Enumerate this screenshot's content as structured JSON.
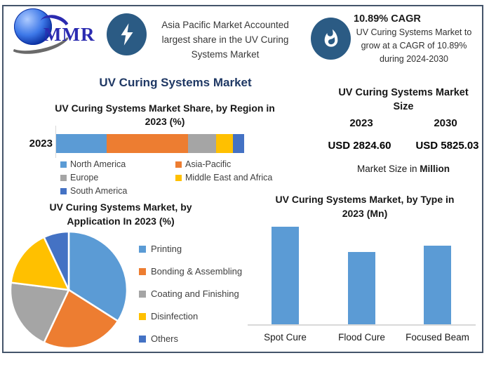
{
  "page": {
    "border_color": "#44546A",
    "background": "#ffffff",
    "accent_navy": "#1f3864",
    "icon_circle_color": "#2b5b84",
    "value_blue": "#1e87c8"
  },
  "header": {
    "logo_text": "MMR",
    "highlight_text": "Asia Pacific Market Accounted largest share in the UV Curing Systems Market",
    "cagr_title": "10.89% CAGR",
    "cagr_line1": "UV Curing Systems Market to",
    "cagr_line2": "grow at a CAGR of 10.89%",
    "cagr_line3": "during 2024-2030"
  },
  "main_title": "UV Curing Systems Market",
  "market_size": {
    "title_line1": "UV Curing Systems Market",
    "title_line2": "Size",
    "columns": [
      {
        "year": "2023",
        "value": "USD 2824.60"
      },
      {
        "year": "2030",
        "value": "USD 5825.03"
      }
    ],
    "note_prefix": "Market Size in ",
    "note_bold": "Million",
    "value_color": "#1e87c8"
  },
  "chart_data": [
    {
      "id": "region_share",
      "type": "bar",
      "orientation": "horizontal-stacked",
      "title": "UV Curing Systems Market Share, by Region in 2023 (%)",
      "title_line1": "UV Curing Systems Market Share, by Region in",
      "title_line2": "2023 (%)",
      "categories": [
        "2023"
      ],
      "series": [
        {
          "name": "North America",
          "color": "#5B9BD5",
          "values": [
            27
          ]
        },
        {
          "name": "Asia-Pacific",
          "color": "#ED7D31",
          "values": [
            43
          ]
        },
        {
          "name": "Europe",
          "color": "#A5A5A5",
          "values": [
            15
          ]
        },
        {
          "name": "Middle East and Africa",
          "color": "#FFC000",
          "values": [
            9
          ]
        },
        {
          "name": "South America",
          "color": "#4472C4",
          "values": [
            6
          ]
        }
      ],
      "unit": "%",
      "xlim": [
        0,
        100
      ],
      "grid": false,
      "legend_position": "bottom"
    },
    {
      "id": "application_share",
      "type": "pie",
      "title": "UV Curing Systems Market, by Application In 2023 (%)",
      "title_line1": "UV Curing Systems Market, by",
      "title_line2": "Application In 2023 (%)",
      "labels": [
        "Printing",
        "Bonding & Assembling",
        "Coating and Finishing",
        "Disinfection",
        "Others"
      ],
      "values": [
        34,
        23,
        20,
        16,
        7
      ],
      "colors": [
        "#5B9BD5",
        "#ED7D31",
        "#A5A5A5",
        "#FFC000",
        "#4472C4"
      ],
      "unit": "%",
      "start_angle_deg": 0,
      "direction": "clockwise",
      "legend_position": "right"
    },
    {
      "id": "type_market",
      "type": "bar",
      "title": "UV Curing Systems Market, by Type in 2023 (Mn)",
      "title_line1": "UV Curing Systems Market, by Type in",
      "title_line2": "2023 (Mn)",
      "categories": [
        "Spot Cure",
        "Flood Cure",
        "Focused Beam"
      ],
      "values": [
        100,
        74,
        81
      ],
      "value_note": "relative bar heights; no value axis shown in figure",
      "bar_color": "#5B9BD5",
      "grid": false
    }
  ]
}
